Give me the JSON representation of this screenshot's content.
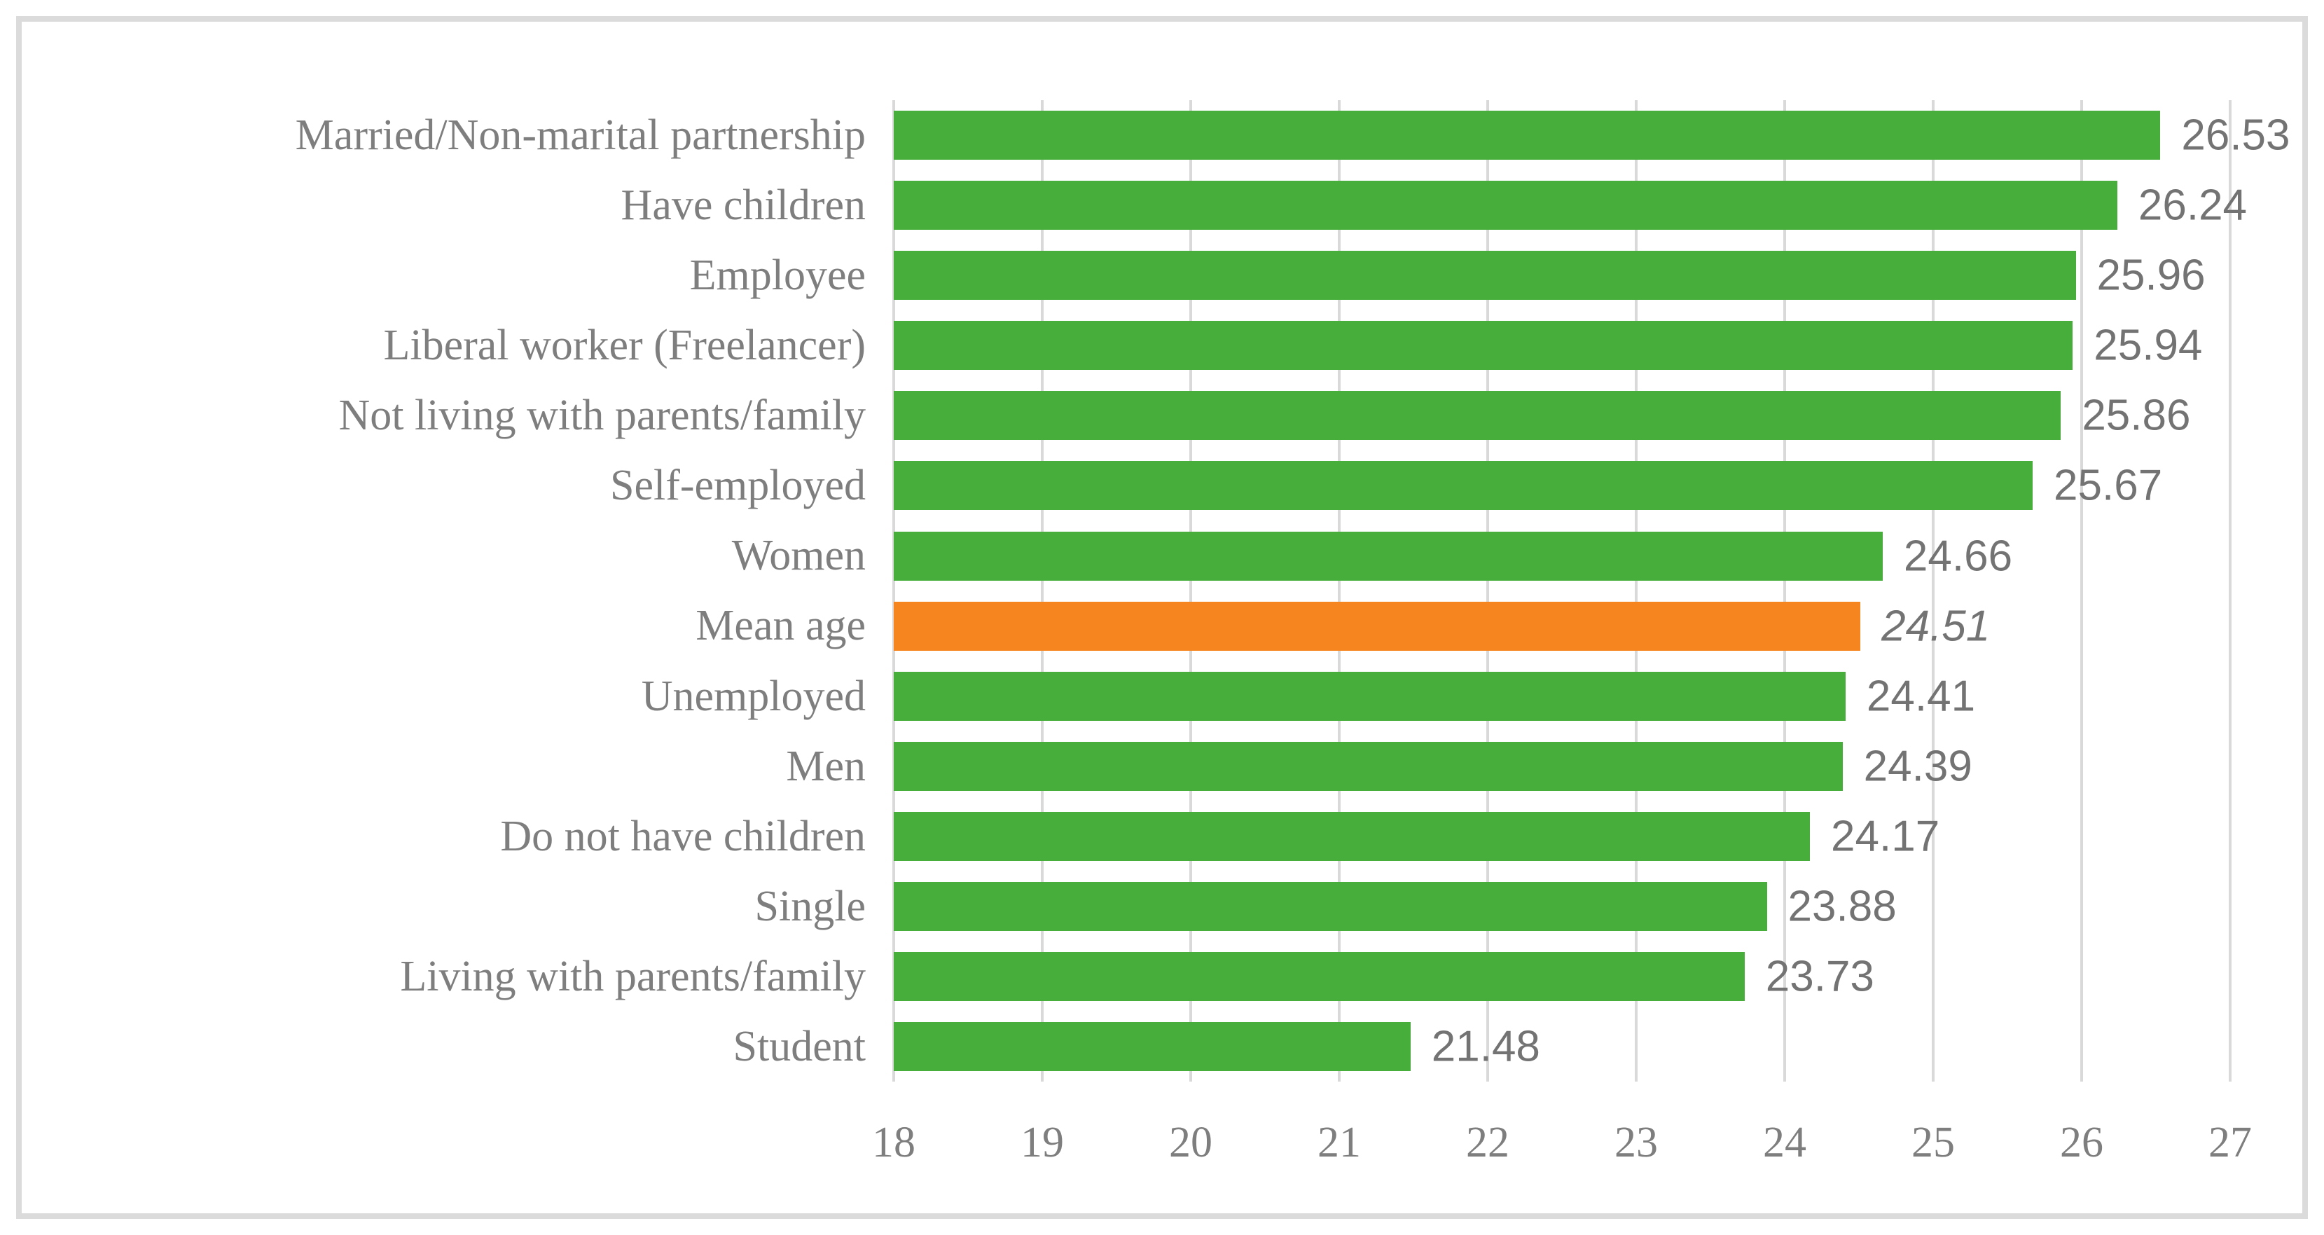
{
  "chart_data": {
    "type": "bar",
    "orientation": "horizontal",
    "title": "",
    "xlabel": "",
    "ylabel": "",
    "categories": [
      "Married/Non-marital partnership",
      "Have children",
      "Employee",
      "Liberal worker (Freelancer)",
      "Not living with parents/family",
      "Self-employed",
      "Women",
      "Mean age",
      "Unemployed",
      "Men",
      "Do not have children",
      "Single",
      "Living with parents/family",
      "Student"
    ],
    "values": [
      26.53,
      26.24,
      25.96,
      25.94,
      25.86,
      25.67,
      24.66,
      24.51,
      24.41,
      24.39,
      24.17,
      23.88,
      23.73,
      21.48
    ],
    "value_labels": [
      "26.53",
      "26.24",
      "25.96",
      "25.94",
      "25.86",
      "25.67",
      "24.66",
      "24.51",
      "24.41",
      "24.39",
      "24.17",
      "23.88",
      "23.73",
      "21.48"
    ],
    "highlight_index": 7,
    "highlight_value_italic": true,
    "xlim": [
      18,
      27
    ],
    "x_ticks": [
      "18",
      "19",
      "20",
      "21",
      "22",
      "23",
      "24",
      "25",
      "26",
      "27"
    ],
    "grid": true,
    "legend": false
  },
  "colors": {
    "bar": "#47ad3b",
    "highlight_bar": "#f6851f",
    "gridline": "#d9d9d9",
    "frame_border": "#dbdbdb",
    "category_text": "#7e7e7e",
    "tick_text": "#7e7e7e",
    "value_text": "#737373",
    "background": "#ffffff"
  }
}
